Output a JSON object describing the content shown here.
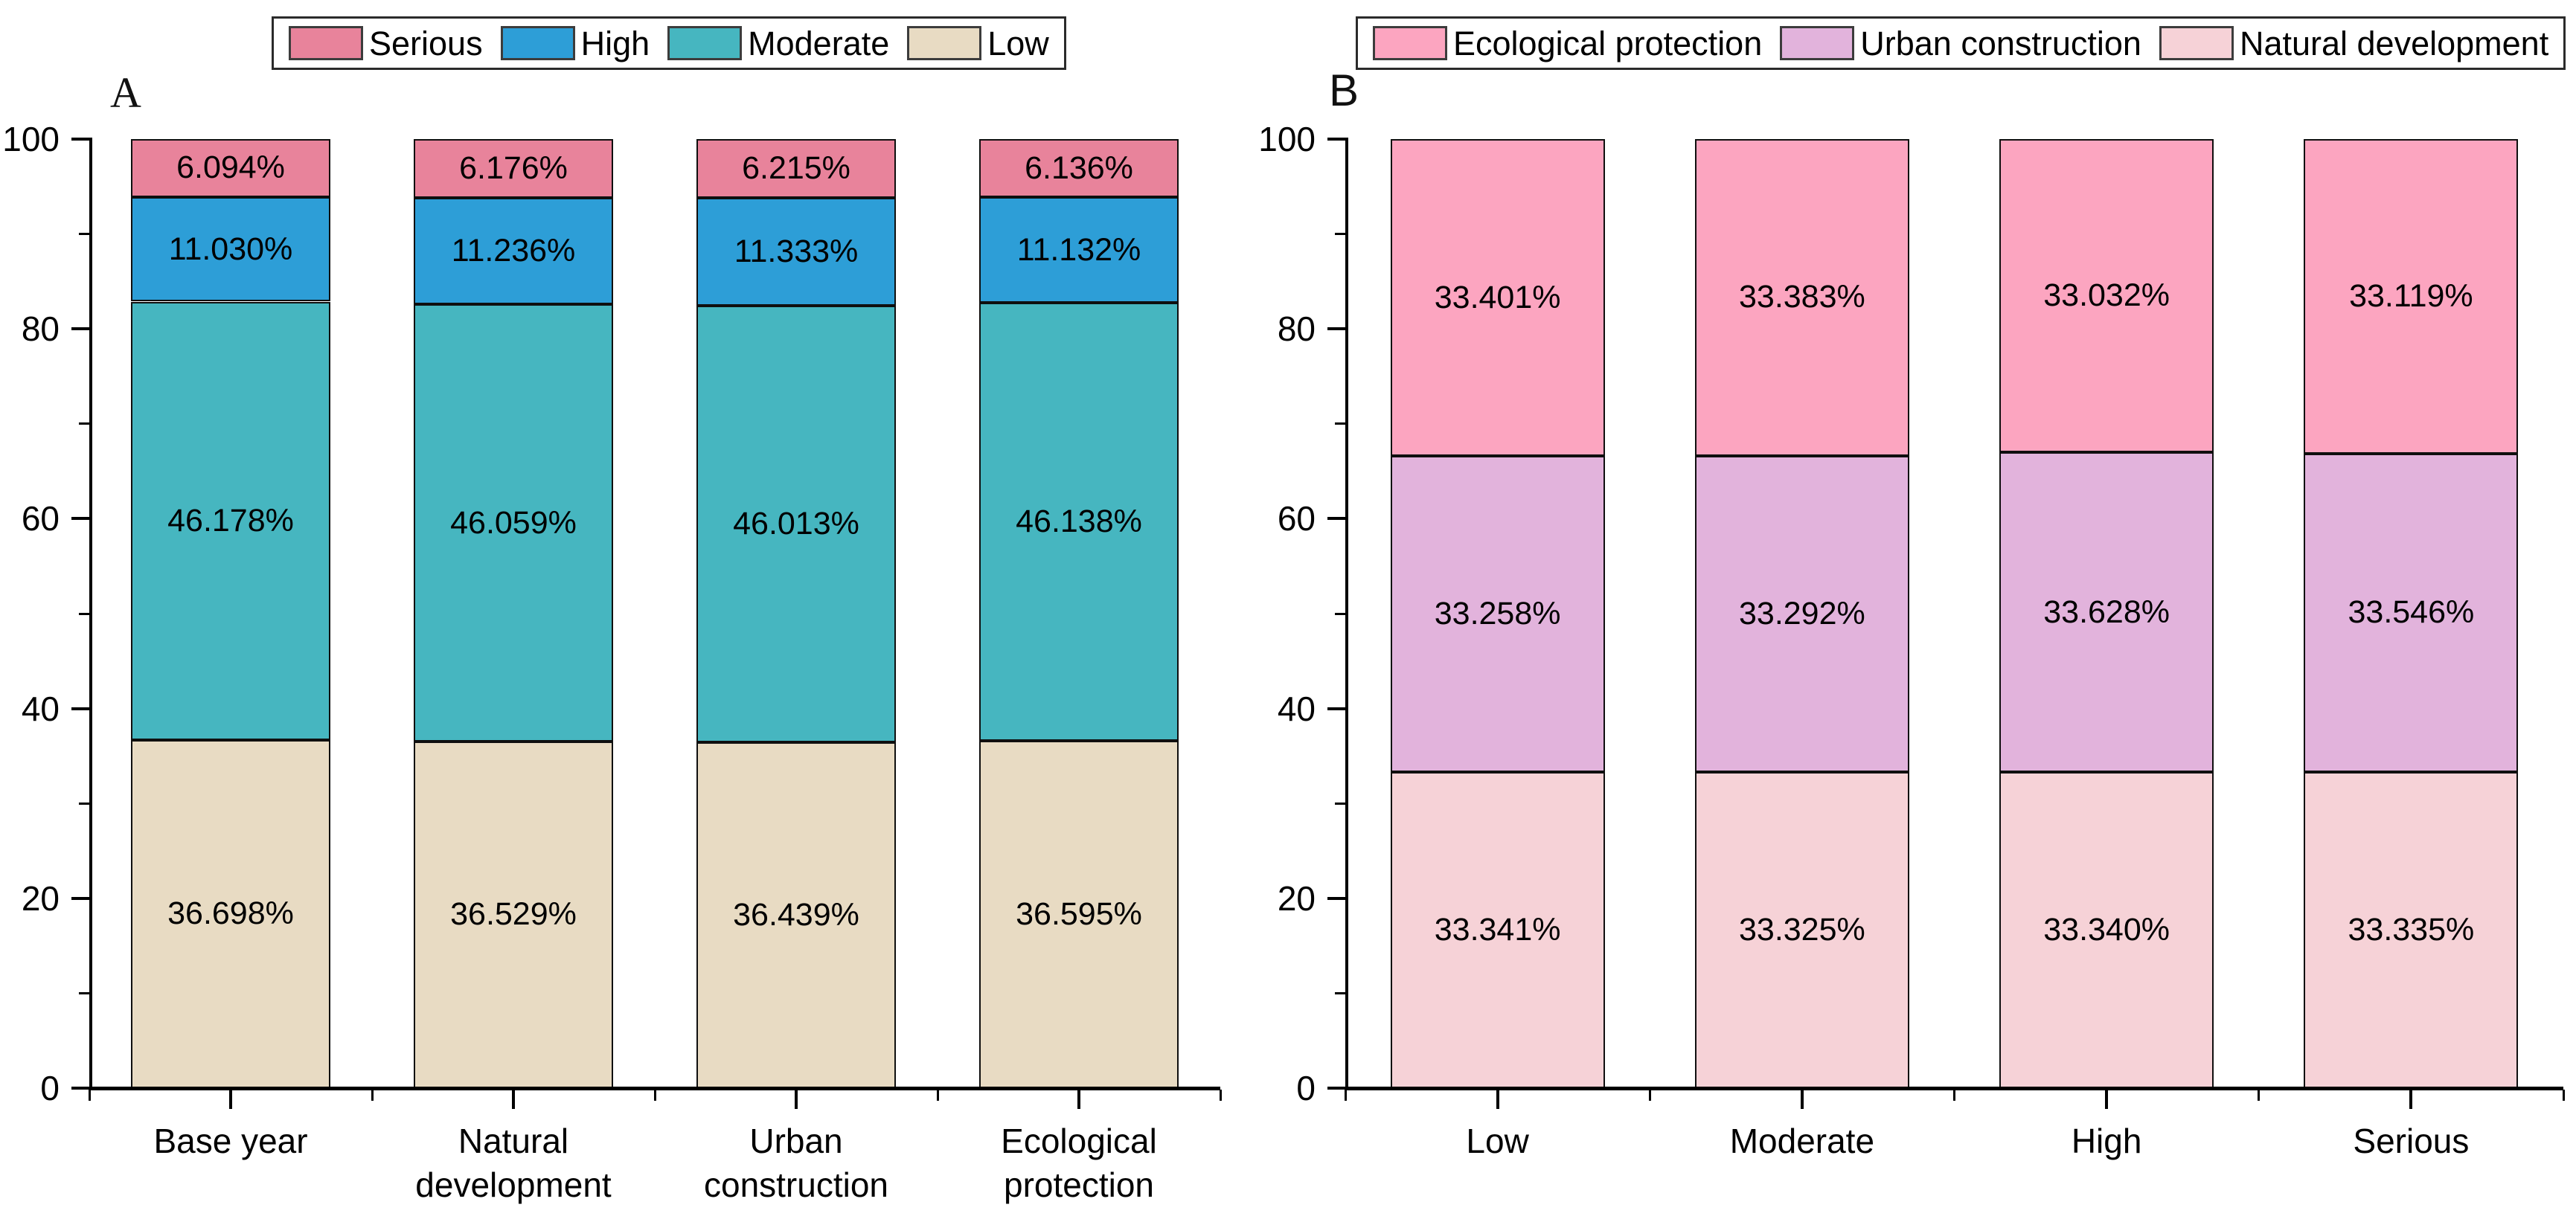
{
  "chart_data": [
    {
      "id": "A",
      "type": "bar",
      "stacked": true,
      "panel_label": "A",
      "legend_position": "top",
      "grid": false,
      "legend": [
        {
          "label": "Serious",
          "color": "#E8839B"
        },
        {
          "label": "High",
          "color": "#2D9ED7"
        },
        {
          "label": "Moderate",
          "color": "#46B6C0"
        },
        {
          "label": "Low",
          "color": "#E8DBC3"
        }
      ],
      "categories": [
        "Base year",
        "Natural\ndevelopment",
        "Urban\nconstruction",
        "Ecological\nprotection"
      ],
      "y_axis": {
        "min": 0,
        "max": 100,
        "major_ticks": [
          0,
          20,
          40,
          60,
          80,
          100
        ],
        "minor_ticks": [
          10,
          30,
          50,
          70,
          90
        ],
        "tick_labels": [
          "0",
          "20",
          "40",
          "60",
          "80",
          "100"
        ]
      },
      "series": [
        {
          "name": "Low",
          "color": "#E8DBC3",
          "values": [
            36.698,
            36.529,
            36.439,
            36.595
          ],
          "labels": [
            "36.698%",
            "36.529%",
            "36.439%",
            "36.595%"
          ]
        },
        {
          "name": "Moderate",
          "color": "#46B6C0",
          "values": [
            46.178,
            46.059,
            46.013,
            46.138
          ],
          "labels": [
            "46.178%",
            "46.059%",
            "46.013%",
            "46.138%"
          ]
        },
        {
          "name": "High",
          "color": "#2D9ED7",
          "values": [
            11.03,
            11.236,
            11.333,
            11.132
          ],
          "labels": [
            "11.030%",
            "11.236%",
            "11.333%",
            "11.132%"
          ]
        },
        {
          "name": "Serious",
          "color": "#E8839B",
          "values": [
            6.094,
            6.176,
            6.215,
            6.136
          ],
          "labels": [
            "6.094%",
            "6.176%",
            "6.215%",
            "6.136%"
          ]
        }
      ]
    },
    {
      "id": "B",
      "type": "bar",
      "stacked": true,
      "panel_label": "B",
      "legend_position": "top",
      "grid": false,
      "legend": [
        {
          "label": "Ecological protection",
          "color": "#FCA5C0"
        },
        {
          "label": "Urban construction",
          "color": "#E2B3DC"
        },
        {
          "label": "Natural development",
          "color": "#F6D2D7"
        }
      ],
      "categories": [
        "Low",
        "Moderate",
        "High",
        "Serious"
      ],
      "y_axis": {
        "min": 0,
        "max": 100,
        "major_ticks": [
          0,
          20,
          40,
          60,
          80,
          100
        ],
        "minor_ticks": [
          10,
          30,
          50,
          70,
          90
        ],
        "tick_labels": [
          "0",
          "20",
          "40",
          "60",
          "80",
          "100"
        ]
      },
      "series": [
        {
          "name": "Natural development",
          "color": "#F6D2D7",
          "values": [
            33.341,
            33.325,
            33.34,
            33.335
          ],
          "labels": [
            "33.341%",
            "33.325%",
            "33.340%",
            "33.335%"
          ]
        },
        {
          "name": "Urban construction",
          "color": "#E2B3DC",
          "values": [
            33.258,
            33.292,
            33.628,
            33.546
          ],
          "labels": [
            "33.258%",
            "33.292%",
            "33.628%",
            "33.546%"
          ]
        },
        {
          "name": "Ecological protection",
          "color": "#FCA5C0",
          "values": [
            33.401,
            33.383,
            33.032,
            33.119
          ],
          "labels": [
            "33.401%",
            "33.383%",
            "33.032%",
            "33.119%"
          ]
        }
      ]
    }
  ]
}
